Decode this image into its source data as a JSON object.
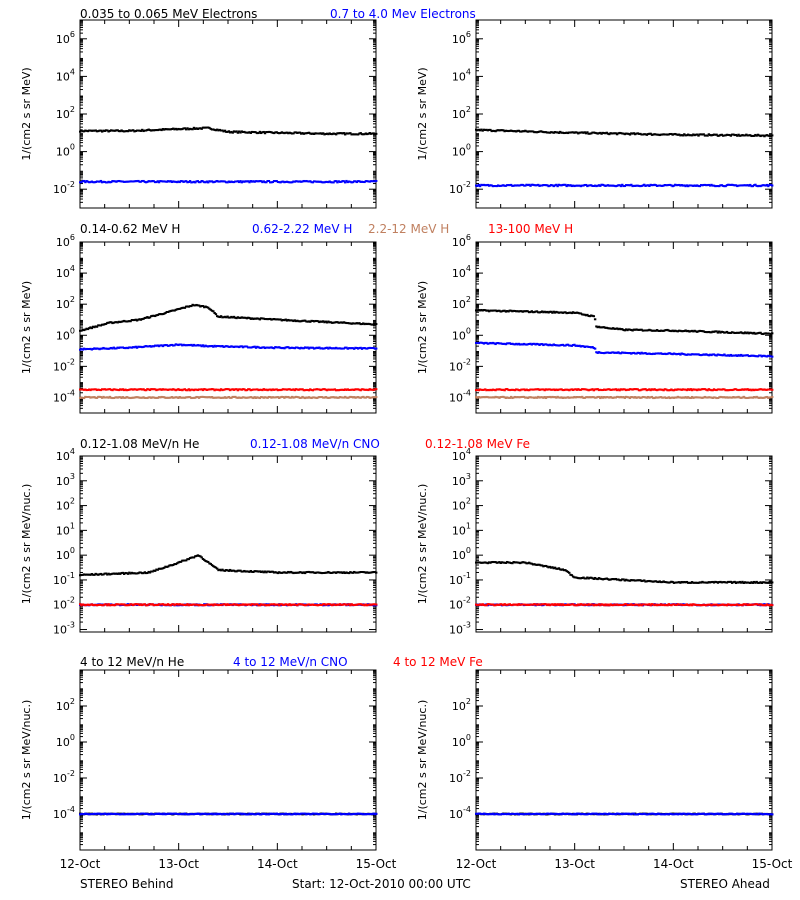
{
  "footer": {
    "left": "STEREO Behind",
    "center": "Start: 12-Oct-2010 00:00 UTC",
    "right": "STEREO Ahead"
  },
  "colors": {
    "black": "#000000",
    "blue": "#0000ff",
    "tan": "#c08060",
    "red": "#ff0000"
  },
  "x_axis": {
    "range_days": [
      0,
      3
    ],
    "ticks": [
      {
        "value": 0,
        "label": "12-Oct"
      },
      {
        "value": 1,
        "label": "13-Oct"
      },
      {
        "value": 2,
        "label": "14-Oct"
      },
      {
        "value": 3,
        "label": "15-Oct"
      }
    ]
  },
  "rows": [
    {
      "legend": [
        {
          "text": "0.035 to 0.065 MeV Electrons",
          "color": "#000000"
        },
        {
          "text": "0.7 to 4.0 Mev Electrons",
          "color": "#0000ff"
        }
      ]
    },
    {
      "legend": [
        {
          "text": "0.14-0.62 MeV H",
          "color": "#000000"
        },
        {
          "text": "0.62-2.22 MeV H",
          "color": "#0000ff"
        },
        {
          "text": "2.2-12 MeV H",
          "color": "#c08060"
        },
        {
          "text": "13-100 MeV H",
          "color": "#ff0000"
        }
      ]
    },
    {
      "legend": [
        {
          "text": "0.12-1.08 MeV/n He",
          "color": "#000000"
        },
        {
          "text": "0.12-1.08 MeV/n CNO",
          "color": "#0000ff"
        },
        {
          "text": "0.12-1.08 MeV Fe",
          "color": "#ff0000"
        }
      ]
    },
    {
      "legend": [
        {
          "text": "4 to 12 MeV/n He",
          "color": "#000000"
        },
        {
          "text": "4 to 12 MeV/n CNO",
          "color": "#0000ff"
        },
        {
          "text": "4 to 12 MeV Fe",
          "color": "#ff0000"
        }
      ]
    }
  ],
  "chart_data": [
    {
      "type": "scatter",
      "spacecraft": "STEREO Behind",
      "ylabel": "1/(cm2 s sr MeV)",
      "yscale": "log",
      "ylim_exp": [
        -3,
        7
      ],
      "yticks": [
        {
          "exp": 6
        },
        {
          "exp": 4
        },
        {
          "exp": 2
        },
        {
          "exp": 0
        },
        {
          "exp": -2
        }
      ],
      "series": [
        {
          "name": "0.035 to 0.065 MeV Electrons",
          "color": "#000000",
          "x": [
            0,
            0.5,
            1.0,
            1.3,
            1.5,
            2.0,
            2.5,
            3.0
          ],
          "y_exp": [
            1.1,
            1.1,
            1.2,
            1.25,
            1.05,
            1.0,
            0.95,
            0.95
          ]
        },
        {
          "name": "0.7 to 4.0 Mev Electrons",
          "color": "#0000ff",
          "x": [
            0,
            3
          ],
          "y_exp": [
            -1.6,
            -1.6
          ]
        }
      ]
    },
    {
      "type": "scatter",
      "spacecraft": "STEREO Ahead",
      "ylabel": "1/(cm2 s sr MeV)",
      "yscale": "log",
      "ylim_exp": [
        -3,
        7
      ],
      "yticks": [
        {
          "exp": 6
        },
        {
          "exp": 4
        },
        {
          "exp": 2
        },
        {
          "exp": 0
        },
        {
          "exp": -2
        }
      ],
      "series": [
        {
          "name": "0.035 to 0.065 MeV Electrons",
          "color": "#000000",
          "x": [
            0,
            1.0,
            2.0,
            3.0
          ],
          "y_exp": [
            1.15,
            1.0,
            0.9,
            0.85
          ]
        },
        {
          "name": "0.7 to 4.0 Mev Electrons",
          "color": "#0000ff",
          "x": [
            0,
            3
          ],
          "y_exp": [
            -1.8,
            -1.8
          ]
        }
      ]
    },
    {
      "type": "scatter",
      "spacecraft": "STEREO Behind",
      "ylabel": "1/(cm2 s sr MeV)",
      "yscale": "log",
      "ylim_exp": [
        -5,
        6
      ],
      "yticks": [
        {
          "exp": 6
        },
        {
          "exp": 4
        },
        {
          "exp": 2
        },
        {
          "exp": 0
        },
        {
          "exp": -2
        },
        {
          "exp": -4
        }
      ],
      "series": [
        {
          "name": "0.14-0.62 MeV H",
          "color": "#000000",
          "x": [
            0,
            0.3,
            0.6,
            0.9,
            1.15,
            1.3,
            1.4,
            2.0,
            3.0
          ],
          "y_exp": [
            0.3,
            0.8,
            1.0,
            1.5,
            1.95,
            1.8,
            1.2,
            1.0,
            0.7
          ]
        },
        {
          "name": "0.62-2.22 MeV H",
          "color": "#0000ff",
          "x": [
            0,
            0.5,
            1.0,
            1.3,
            2.0,
            3.0
          ],
          "y_exp": [
            -0.9,
            -0.8,
            -0.6,
            -0.7,
            -0.8,
            -0.85
          ]
        },
        {
          "name": "2.2-12 MeV H",
          "color": "#c08060",
          "x": [
            0,
            3
          ],
          "y_exp": [
            -4.0,
            -4.0
          ]
        },
        {
          "name": "13-100 MeV H",
          "color": "#ff0000",
          "x": [
            0,
            3
          ],
          "y_exp": [
            -3.5,
            -3.5
          ]
        }
      ]
    },
    {
      "type": "scatter",
      "spacecraft": "STEREO Ahead",
      "ylabel": "1/(cm2 s sr MeV)",
      "yscale": "log",
      "ylim_exp": [
        -5,
        6
      ],
      "yticks": [
        {
          "exp": 6
        },
        {
          "exp": 4
        },
        {
          "exp": 2
        },
        {
          "exp": 0
        },
        {
          "exp": -2
        },
        {
          "exp": -4
        }
      ],
      "series": [
        {
          "name": "0.14-0.62 MeV H",
          "color": "#000000",
          "x": [
            0,
            1.0,
            1.2,
            1.22,
            1.5,
            2.0,
            3.0
          ],
          "y_exp": [
            1.6,
            1.45,
            1.2,
            0.55,
            0.35,
            0.3,
            0.1
          ]
        },
        {
          "name": "0.62-2.22 MeV H",
          "color": "#0000ff",
          "x": [
            0,
            1.0,
            1.2,
            1.22,
            2.0,
            3.0
          ],
          "y_exp": [
            -0.5,
            -0.65,
            -0.8,
            -1.1,
            -1.2,
            -1.35
          ]
        },
        {
          "name": "2.2-12 MeV H",
          "color": "#c08060",
          "x": [
            0,
            3
          ],
          "y_exp": [
            -4.0,
            -4.0
          ]
        },
        {
          "name": "13-100 MeV H",
          "color": "#ff0000",
          "x": [
            0,
            3
          ],
          "y_exp": [
            -3.5,
            -3.5
          ]
        }
      ]
    },
    {
      "type": "scatter",
      "spacecraft": "STEREO Behind",
      "ylabel": "1/(cm2 s sr MeV/nuc.)",
      "yscale": "log",
      "ylim_exp": [
        -3.1,
        4
      ],
      "yticks": [
        {
          "exp": 4
        },
        {
          "exp": 3
        },
        {
          "exp": 2
        },
        {
          "exp": 1
        },
        {
          "exp": 0
        },
        {
          "exp": -1
        },
        {
          "exp": -2
        },
        {
          "exp": -3
        }
      ],
      "series": [
        {
          "name": "0.12-1.08 MeV/n He",
          "color": "#000000",
          "x": [
            0,
            0.7,
            1.0,
            1.2,
            1.4,
            2.0,
            3.0
          ],
          "y_exp": [
            -0.8,
            -0.7,
            -0.3,
            0.0,
            -0.6,
            -0.7,
            -0.7
          ]
        },
        {
          "name": "0.12-1.08 MeV/n CNO",
          "color": "#0000ff",
          "x": [
            0,
            3
          ],
          "y_exp": [
            -2.0,
            -2.0
          ]
        },
        {
          "name": "0.12-1.08 MeV Fe",
          "color": "#ff0000",
          "x": [
            0,
            3
          ],
          "y_exp": [
            -2.0,
            -2.0
          ]
        }
      ]
    },
    {
      "type": "scatter",
      "spacecraft": "STEREO Ahead",
      "ylabel": "1/(cm2 s sr MeV/nuc.)",
      "yscale": "log",
      "ylim_exp": [
        -3.1,
        4
      ],
      "yticks": [
        {
          "exp": 4
        },
        {
          "exp": 3
        },
        {
          "exp": 2
        },
        {
          "exp": 1
        },
        {
          "exp": 0
        },
        {
          "exp": -1
        },
        {
          "exp": -2
        },
        {
          "exp": -3
        }
      ],
      "series": [
        {
          "name": "0.12-1.08 MeV/n He",
          "color": "#000000",
          "x": [
            0,
            0.5,
            0.9,
            1.0,
            2.0,
            3.0
          ],
          "y_exp": [
            -0.3,
            -0.3,
            -0.6,
            -0.9,
            -1.1,
            -1.1
          ]
        },
        {
          "name": "0.12-1.08 MeV/n CNO",
          "color": "#0000ff",
          "x": [
            0,
            3
          ],
          "y_exp": [
            -2.0,
            -2.0
          ]
        },
        {
          "name": "0.12-1.08 MeV Fe",
          "color": "#ff0000",
          "x": [
            0,
            3
          ],
          "y_exp": [
            -2.0,
            -2.0
          ]
        }
      ]
    },
    {
      "type": "scatter",
      "spacecraft": "STEREO Behind",
      "ylabel": "1/(cm2 s sr MeV/nuc.)",
      "yscale": "log",
      "ylim_exp": [
        -6,
        4
      ],
      "yticks": [
        {
          "exp": 2
        },
        {
          "exp": 0
        },
        {
          "exp": -2
        },
        {
          "exp": -4
        }
      ],
      "series": [
        {
          "name": "4 to 12 MeV/n He",
          "color": "#000000",
          "x": [
            0,
            3
          ],
          "y_exp": [
            -4.0,
            -4.0
          ]
        },
        {
          "name": "4 to 12 MeV/n CNO",
          "color": "#0000ff",
          "x": [
            0,
            3
          ],
          "y_exp": [
            -4.0,
            -4.0
          ]
        }
      ]
    },
    {
      "type": "scatter",
      "spacecraft": "STEREO Ahead",
      "ylabel": "1/(cm2 s sr MeV/nuc.)",
      "yscale": "log",
      "ylim_exp": [
        -6,
        4
      ],
      "yticks": [
        {
          "exp": 2
        },
        {
          "exp": 0
        },
        {
          "exp": -2
        },
        {
          "exp": -4
        }
      ],
      "series": [
        {
          "name": "4 to 12 MeV/n He",
          "color": "#000000",
          "x": [
            0,
            3
          ],
          "y_exp": [
            -4.0,
            -4.0
          ]
        },
        {
          "name": "4 to 12 MeV/n CNO",
          "color": "#0000ff",
          "x": [
            0,
            3
          ],
          "y_exp": [
            -4.0,
            -4.0
          ]
        }
      ]
    }
  ]
}
